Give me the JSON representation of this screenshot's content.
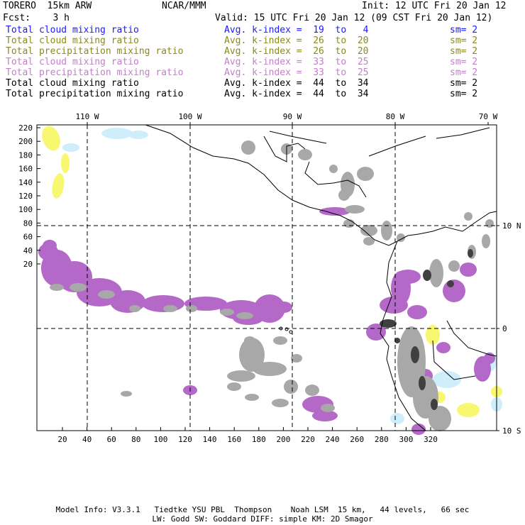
{
  "header": {
    "title": "TORERO  15km ARW",
    "org": "NCAR/MMM",
    "init": "Init: 12 UTC Fri 20 Jan 12",
    "fcst": "Fcst:    3 h",
    "valid": "Valid: 15 UTC Fri 20 Jan 12 (09 CST Fri 20 Jan 12)"
  },
  "legend_rows": [
    {
      "field": "Total cloud mixing ratio",
      "kindex": "Avg. k-index =  19  to   4",
      "sm": "sm= 2",
      "color": "#1a1aff"
    },
    {
      "field": "Total cloud mixing ratio",
      "kindex": "Avg. k-index =  26  to  20",
      "sm": "sm= 2",
      "color": "#8a8a1a"
    },
    {
      "field": "Total precipitation mixing ratio",
      "kindex": "Avg. k-index =  26  to  20",
      "sm": "sm= 2",
      "color": "#8a8a1a"
    },
    {
      "field": "Total cloud mixing ratio",
      "kindex": "Avg. k-index =  33  to  25",
      "sm": "sm= 2",
      "color": "#c080c8"
    },
    {
      "field": "Total precipitation mixing ratio",
      "kindex": "Avg. k-index =  33  to  25",
      "sm": "sm= 2",
      "color": "#c080c8"
    },
    {
      "field": "Total cloud mixing ratio",
      "kindex": "Avg. k-index =  44  to  34",
      "sm": "sm= 2",
      "color": "#000000"
    },
    {
      "field": "Total precipitation mixing ratio",
      "kindex": "Avg. k-index =  44  to  34",
      "sm": "sm= 2",
      "color": "#000000"
    }
  ],
  "map": {
    "top_lon_labels": [
      "110 W",
      "100 W",
      "90 W",
      "80 W",
      "70 W"
    ],
    "right_lat_labels": [
      "10 N",
      "0",
      "10 S"
    ],
    "left_ticks": [
      "220",
      "200",
      "180",
      "160",
      "140",
      "120",
      "100",
      "80",
      "60",
      "40",
      "20"
    ],
    "bottom_ticks": [
      "20",
      "40",
      "60",
      "80",
      "100",
      "120",
      "140",
      "160",
      "180",
      "200",
      "220",
      "240",
      "260",
      "280",
      "300",
      "320"
    ],
    "colors": {
      "cyan": "#cfeefc",
      "yellow": "#f8f870",
      "purple": "#b468c8",
      "gray": "#a8a8a8",
      "dark": "#404040",
      "coast": "#000000"
    }
  },
  "footer": {
    "line1": "Model Info: V3.3.1   Tiedtke YSU PBL  Thompson    Noah LSM  15 km,   44 levels,   66 sec",
    "line2": "LW: Godd SW: Goddard DIFF: simple KM: 2D Smagor"
  }
}
